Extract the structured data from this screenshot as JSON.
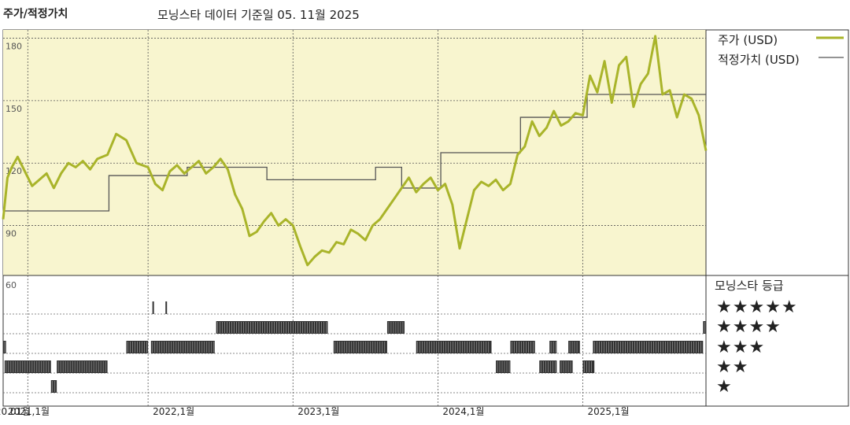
{
  "header": {
    "title": "주가/적정가치",
    "date_note": "모닝스타 데이터 기준일 05. 11월 2025"
  },
  "legend": {
    "price_label": "주가 (USD)",
    "fair_label": "적정가치 (USD)"
  },
  "rating": {
    "title": "모닝스타 등급",
    "rows": [
      "★★★★★",
      "★★★★",
      "★★★",
      "★★",
      "★"
    ]
  },
  "colors": {
    "price": "#a9b42a",
    "fair": "#555555",
    "plot_bg": "#f8f5cf",
    "bars": "#333333"
  },
  "chart_data": [
    {
      "type": "line",
      "y_ticks": [
        "180",
        "150",
        "120",
        "90"
      ],
      "ylim": [
        66,
        184
      ],
      "x_ticks": [
        "2020.01월",
        "2021,1월",
        "2022,1월",
        "2023,1월",
        "2024,1월",
        "2025,1월"
      ],
      "xlim": [
        2021.0,
        2025.85
      ],
      "series": [
        {
          "name": "주가 (USD)",
          "x": [
            2021.0,
            2021.03,
            2021.06,
            2021.1,
            2021.15,
            2021.2,
            2021.25,
            2021.3,
            2021.35,
            2021.4,
            2021.45,
            2021.5,
            2021.55,
            2021.6,
            2021.65,
            2021.72,
            2021.78,
            2021.85,
            2021.92,
            2022.0,
            2022.05,
            2022.1,
            2022.15,
            2022.2,
            2022.25,
            2022.3,
            2022.35,
            2022.4,
            2022.45,
            2022.5,
            2022.55,
            2022.6,
            2022.65,
            2022.7,
            2022.75,
            2022.8,
            2022.85,
            2022.9,
            2022.95,
            2023.0,
            2023.05,
            2023.1,
            2023.15,
            2023.2,
            2023.25,
            2023.3,
            2023.35,
            2023.4,
            2023.45,
            2023.5,
            2023.55,
            2023.6,
            2023.65,
            2023.7,
            2023.75,
            2023.8,
            2023.85,
            2023.9,
            2023.95,
            2024.0,
            2024.05,
            2024.1,
            2024.15,
            2024.2,
            2024.25,
            2024.3,
            2024.35,
            2024.4,
            2024.45,
            2024.5,
            2024.55,
            2024.6,
            2024.65,
            2024.7,
            2024.75,
            2024.8,
            2024.85,
            2024.9,
            2024.95,
            2025.0,
            2025.05,
            2025.1,
            2025.15,
            2025.2,
            2025.25,
            2025.3,
            2025.35,
            2025.4,
            2025.45,
            2025.5,
            2025.55,
            2025.6,
            2025.65,
            2025.7,
            2025.75,
            2025.8,
            2025.85
          ],
          "values": [
            93,
            113,
            118,
            123,
            116,
            109,
            112,
            115,
            108,
            115,
            120,
            118,
            121,
            117,
            122,
            124,
            134,
            131,
            120,
            118,
            110,
            107,
            116,
            119,
            115,
            118,
            121,
            115,
            118,
            122,
            117,
            105,
            98,
            85,
            87,
            92,
            96,
            90,
            93,
            90,
            80,
            71,
            75,
            78,
            77,
            82,
            81,
            88,
            86,
            83,
            90,
            93,
            98,
            103,
            108,
            113,
            106,
            110,
            113,
            107,
            110,
            100,
            79,
            93,
            107,
            111,
            109,
            112,
            107,
            110,
            124,
            128,
            140,
            133,
            137,
            145,
            138,
            140,
            144,
            143,
            162,
            154,
            169,
            149,
            167,
            171,
            147,
            158,
            163,
            181,
            153,
            155,
            142,
            153,
            151,
            143,
            126
          ],
          "color": "#a9b42a"
        },
        {
          "name": "적정가치 (USD)",
          "steps": [
            {
              "from": 2021.0,
              "to": 2021.73,
              "value": 97
            },
            {
              "from": 2021.73,
              "to": 2022.27,
              "value": 114
            },
            {
              "from": 2022.27,
              "to": 2022.82,
              "value": 118
            },
            {
              "from": 2022.82,
              "to": 2023.57,
              "value": 112
            },
            {
              "from": 2023.57,
              "to": 2023.75,
              "value": 118
            },
            {
              "from": 2023.75,
              "to": 2024.02,
              "value": 108
            },
            {
              "from": 2024.02,
              "to": 2024.57,
              "value": 125
            },
            {
              "from": 2024.57,
              "to": 2025.03,
              "value": 142
            },
            {
              "from": 2025.03,
              "to": 2025.85,
              "value": 153
            }
          ],
          "color": "#555555"
        }
      ]
    },
    {
      "type": "table",
      "title": "모닝스타 등급",
      "y_ticks": [
        "60"
      ],
      "rows": [
        {
          "stars": 5,
          "periods": [
            [
              2022.03,
              2022.04
            ],
            [
              2022.12,
              2022.13
            ]
          ]
        },
        {
          "stars": 4,
          "periods": [
            [
              2022.47,
              2023.24
            ],
            [
              2023.65,
              2023.77
            ],
            [
              2025.83,
              2025.85
            ]
          ]
        },
        {
          "stars": 3,
          "periods": [
            [
              2021.0,
              2021.02
            ],
            [
              2021.85,
              2022.0
            ],
            [
              2022.02,
              2022.46
            ],
            [
              2023.28,
              2023.65
            ],
            [
              2023.85,
              2024.37
            ],
            [
              2024.5,
              2024.67
            ],
            [
              2024.77,
              2024.82
            ],
            [
              2024.9,
              2024.98
            ],
            [
              2025.07,
              2025.83
            ]
          ]
        },
        {
          "stars": 2,
          "periods": [
            [
              2021.01,
              2021.33
            ],
            [
              2021.37,
              2021.72
            ],
            [
              2024.4,
              2024.5
            ],
            [
              2024.7,
              2024.82
            ],
            [
              2024.84,
              2024.93
            ],
            [
              2025.0,
              2025.08
            ]
          ]
        },
        {
          "stars": 1,
          "periods": [
            [
              2021.33,
              2021.37
            ]
          ]
        }
      ]
    }
  ]
}
